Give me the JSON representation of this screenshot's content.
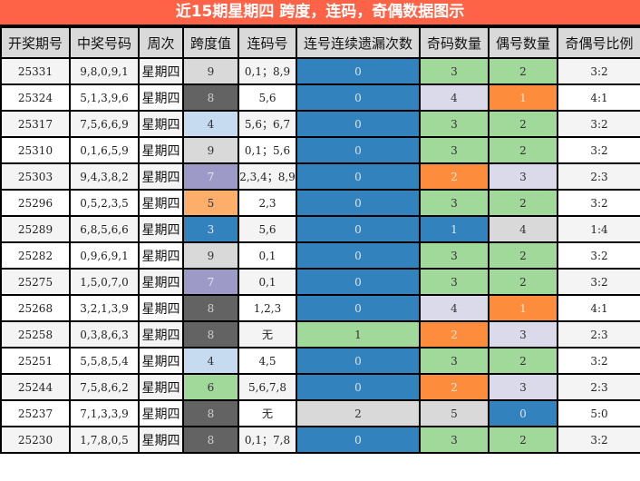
{
  "title": "近15期星期四 跨度，连码，奇偶数据图示",
  "columns": [
    "开奖期号",
    "中奖号码",
    "周次",
    "跨度值",
    "连码号",
    "连号连续遗漏次数",
    "奇码数量",
    "偶号数量",
    "奇偶号比例"
  ],
  "colors": {
    "title_bg": "#ff6347",
    "header_bg": "#d9d9d9",
    "c-lgray": "#d9d9d9",
    "c-dgray": "#636363",
    "c-lblue": "#c6dbef",
    "c-purple": "#9e9ac8",
    "c-peach": "#fdae6b",
    "c-blue": "#3182bd",
    "c-green": "#a1d99b",
    "c-orange": "#fd8d3c",
    "c-lav": "#dadaeb"
  },
  "rows": [
    {
      "issue": "25331",
      "numbers": "9,8,0,9,1",
      "weekday": "星期四",
      "span": "9",
      "span_color": "c-lgray",
      "consec": "0,1；8,9",
      "miss": "0",
      "miss_color": "c-blue",
      "odd": "3",
      "odd_color": "c-green",
      "even": "2",
      "even_color": "c-green",
      "ratio": "3:2"
    },
    {
      "issue": "25324",
      "numbers": "5,1,3,9,6",
      "weekday": "星期四",
      "span": "8",
      "span_color": "c-dgray",
      "consec": "5,6",
      "miss": "0",
      "miss_color": "c-blue",
      "odd": "4",
      "odd_color": "c-lav",
      "even": "1",
      "even_color": "c-orange",
      "ratio": "4:1"
    },
    {
      "issue": "25317",
      "numbers": "7,5,6,6,9",
      "weekday": "星期四",
      "span": "4",
      "span_color": "c-lblue",
      "consec": "5,6；6,7",
      "miss": "0",
      "miss_color": "c-blue",
      "odd": "3",
      "odd_color": "c-green",
      "even": "2",
      "even_color": "c-green",
      "ratio": "3:2"
    },
    {
      "issue": "25310",
      "numbers": "0,1,6,5,9",
      "weekday": "星期四",
      "span": "9",
      "span_color": "c-lgray",
      "consec": "0,1；5,6",
      "miss": "0",
      "miss_color": "c-blue",
      "odd": "3",
      "odd_color": "c-green",
      "even": "2",
      "even_color": "c-green",
      "ratio": "3:2"
    },
    {
      "issue": "25303",
      "numbers": "9,4,3,8,2",
      "weekday": "星期四",
      "span": "7",
      "span_color": "c-purple",
      "consec": "2,3,4；8,9",
      "miss": "0",
      "miss_color": "c-blue",
      "odd": "2",
      "odd_color": "c-orange",
      "even": "3",
      "even_color": "c-lav",
      "ratio": "2:3"
    },
    {
      "issue": "25296",
      "numbers": "0,5,2,3,5",
      "weekday": "星期四",
      "span": "5",
      "span_color": "c-peach",
      "consec": "2,3",
      "miss": "0",
      "miss_color": "c-blue",
      "odd": "3",
      "odd_color": "c-green",
      "even": "2",
      "even_color": "c-green",
      "ratio": "3:2"
    },
    {
      "issue": "25289",
      "numbers": "6,8,5,6,6",
      "weekday": "星期四",
      "span": "3",
      "span_color": "c-blue",
      "consec": "5,6",
      "miss": "0",
      "miss_color": "c-blue",
      "odd": "1",
      "odd_color": "c-blue",
      "even": "4",
      "even_color": "c-lgray",
      "ratio": "1:4"
    },
    {
      "issue": "25282",
      "numbers": "0,9,6,9,1",
      "weekday": "星期四",
      "span": "9",
      "span_color": "c-lgray",
      "consec": "0,1",
      "miss": "0",
      "miss_color": "c-blue",
      "odd": "3",
      "odd_color": "c-green",
      "even": "2",
      "even_color": "c-green",
      "ratio": "3:2"
    },
    {
      "issue": "25275",
      "numbers": "1,5,0,7,0",
      "weekday": "星期四",
      "span": "7",
      "span_color": "c-purple",
      "consec": "0,1",
      "miss": "0",
      "miss_color": "c-blue",
      "odd": "3",
      "odd_color": "c-green",
      "even": "2",
      "even_color": "c-green",
      "ratio": "3:2"
    },
    {
      "issue": "25268",
      "numbers": "3,2,1,3,9",
      "weekday": "星期四",
      "span": "8",
      "span_color": "c-dgray",
      "consec": "1,2,3",
      "miss": "0",
      "miss_color": "c-blue",
      "odd": "4",
      "odd_color": "c-lav",
      "even": "1",
      "even_color": "c-orange",
      "ratio": "4:1"
    },
    {
      "issue": "25258",
      "numbers": "0,3,8,6,3",
      "weekday": "星期四",
      "span": "8",
      "span_color": "c-dgray",
      "consec": "无",
      "miss": "1",
      "miss_color": "c-green",
      "odd": "2",
      "odd_color": "c-orange",
      "even": "3",
      "even_color": "c-lav",
      "ratio": "2:3"
    },
    {
      "issue": "25251",
      "numbers": "5,5,8,5,4",
      "weekday": "星期四",
      "span": "4",
      "span_color": "c-lblue",
      "consec": "4,5",
      "miss": "0",
      "miss_color": "c-blue",
      "odd": "3",
      "odd_color": "c-green",
      "even": "2",
      "even_color": "c-green",
      "ratio": "3:2"
    },
    {
      "issue": "25244",
      "numbers": "7,5,8,6,2",
      "weekday": "星期四",
      "span": "6",
      "span_color": "c-green",
      "consec": "5,6,7,8",
      "miss": "0",
      "miss_color": "c-blue",
      "odd": "2",
      "odd_color": "c-orange",
      "even": "3",
      "even_color": "c-lav",
      "ratio": "2:3"
    },
    {
      "issue": "25237",
      "numbers": "7,1,3,3,9",
      "weekday": "星期四",
      "span": "8",
      "span_color": "c-dgray",
      "consec": "无",
      "miss": "2",
      "miss_color": "c-lgray",
      "odd": "5",
      "odd_color": "c-lgray",
      "even": "0",
      "even_color": "c-blue",
      "ratio": "5:0"
    },
    {
      "issue": "25230",
      "numbers": "1,7,8,0,5",
      "weekday": "星期四",
      "span": "8",
      "span_color": "c-dgray",
      "consec": "0,1；7,8",
      "miss": "0",
      "miss_color": "c-blue",
      "odd": "3",
      "odd_color": "c-green",
      "even": "2",
      "even_color": "c-green",
      "ratio": "3:2"
    }
  ]
}
